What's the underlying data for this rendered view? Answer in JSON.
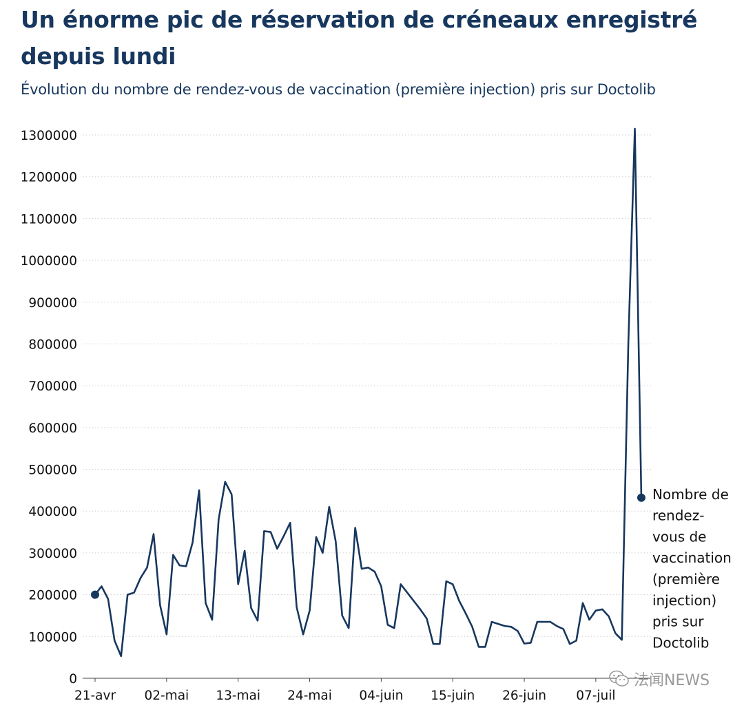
{
  "header": {
    "title": "Un énorme pic de réservation de créneaux enregistré depuis lundi",
    "subtitle": "Évolution du nombre de rendez-vous de vaccination (première injection) pris sur Doctolib"
  },
  "watermark": {
    "text": "法闻NEWS",
    "icon": "wechat-icon"
  },
  "colors": {
    "line": "#17375e",
    "grid": "#cfcfcf",
    "text": "#111111"
  },
  "chart_data": {
    "type": "line",
    "title": "Un énorme pic de réservation de créneaux enregistré depuis lundi",
    "subtitle": "Évolution du nombre de rendez-vous de vaccination (première injection) pris sur Doctolib",
    "xlabel": "",
    "ylabel": "",
    "ylim": [
      0,
      1300000
    ],
    "yticks": [
      "0",
      "100000",
      "200000",
      "300000",
      "400000",
      "500000",
      "600000",
      "700000",
      "800000",
      "900000",
      "1000000",
      "1100000",
      "1200000",
      "1300000"
    ],
    "xticks": [
      {
        "day": 0,
        "label": "21-avr"
      },
      {
        "day": 11,
        "label": "02-mai"
      },
      {
        "day": 22,
        "label": "13-mai"
      },
      {
        "day": 33,
        "label": "24-mai"
      },
      {
        "day": 44,
        "label": "04-juin"
      },
      {
        "day": 55,
        "label": "15-juin"
      },
      {
        "day": 66,
        "label": "26-juin"
      },
      {
        "day": 77,
        "label": "07-juil"
      }
    ],
    "grid": "horizontal dotted",
    "series": [
      {
        "name": "Nombre de rendez-vous de vaccination (première injection) pris sur Doctolib",
        "values": [
          200000,
          220000,
          190000,
          90000,
          53000,
          200000,
          205000,
          240000,
          265000,
          345000,
          175000,
          105000,
          295000,
          270000,
          268000,
          325000,
          450000,
          180000,
          140000,
          380000,
          470000,
          440000,
          225000,
          305000,
          168000,
          138000,
          352000,
          350000,
          310000,
          340000,
          372000,
          170000,
          105000,
          162000,
          338000,
          300000,
          410000,
          328000,
          150000,
          120000,
          360000,
          262000,
          265000,
          255000,
          220000,
          128000,
          120000,
          225000,
          205000,
          185000,
          165000,
          143000,
          82000,
          82000,
          232000,
          225000,
          185000,
          155000,
          123000,
          75000,
          75000,
          135000,
          130000,
          125000,
          123000,
          113000,
          83000,
          85000,
          135000,
          135000,
          135000,
          125000,
          118000,
          82000,
          90000,
          180000,
          140000,
          162000,
          165000,
          148000,
          108000,
          92000,
          800000,
          1315000,
          432000
        ]
      }
    ]
  }
}
